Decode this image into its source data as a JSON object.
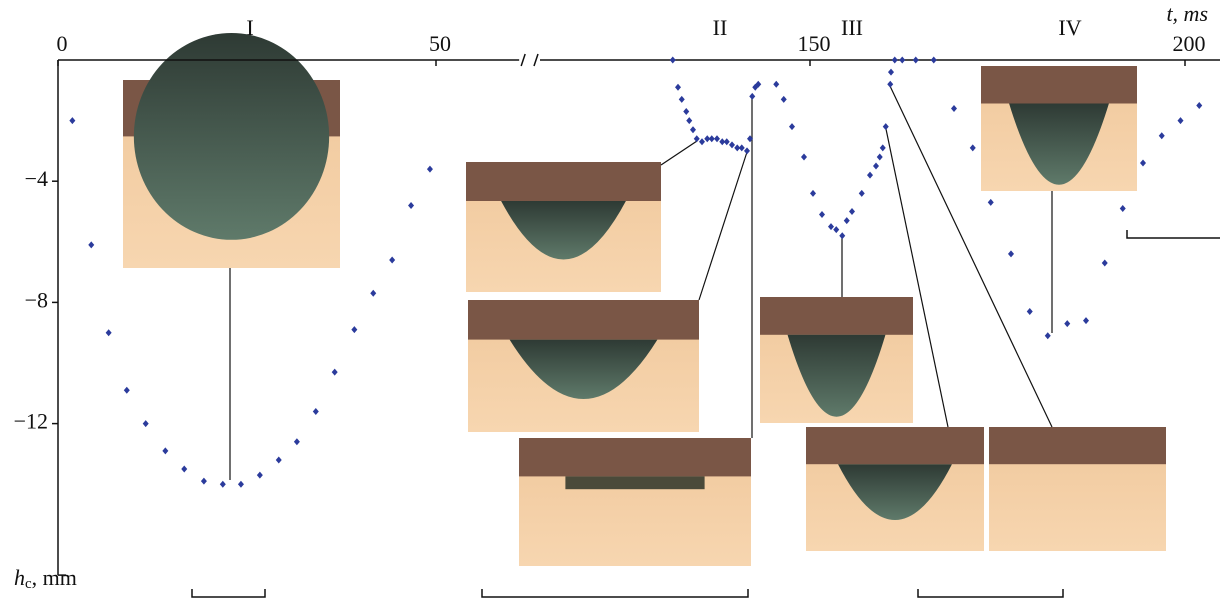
{
  "chart_data": {
    "type": "scatter",
    "x_label": "t, ms",
    "y_label": {
      "symbol": "h",
      "subscript": "c",
      "unit": ", mm"
    },
    "section_labels": [
      "I",
      "II",
      "III",
      "IV"
    ],
    "color": "#2b3b9c",
    "xlim": [
      0,
      211
    ],
    "x_break": [
      61,
      114
    ],
    "ylim": [
      -17,
      0
    ],
    "xticks": [
      0,
      50,
      150,
      200
    ],
    "yticks": [
      {
        "value": -4,
        "label": "−4"
      },
      {
        "value": -8,
        "label": "−8"
      },
      {
        "value": -12,
        "label": "−12"
      }
    ],
    "x": [
      1.9,
      4.4,
      6.7,
      9.1,
      11.6,
      14.2,
      16.7,
      19.3,
      21.8,
      24.2,
      26.7,
      29.2,
      31.6,
      34.1,
      36.6,
      39.2,
      41.7,
      44.2,
      46.7,
      49.2,
      131.7,
      132.4,
      132.9,
      133.5,
      133.9,
      134.4,
      134.9,
      135.6,
      136.3,
      136.9,
      137.6,
      138.3,
      138.9,
      139.6,
      140.3,
      140.9,
      141.6,
      142.0,
      142.3,
      142.7,
      143.1,
      145.5,
      146.5,
      147.6,
      149.2,
      150.4,
      151.6,
      152.8,
      153.5,
      154.3,
      154.9,
      155.6,
      156.9,
      158.0,
      158.8,
      159.3,
      159.7,
      160.1,
      160.7,
      160.8,
      161.3,
      162.3,
      164.1,
      166.5,
      169.2,
      171.7,
      174.1,
      176.8,
      179.3,
      181.7,
      184.3,
      186.8,
      189.3,
      191.7,
      194.4,
      196.9,
      199.4,
      201.9
    ],
    "y": [
      -2.0,
      -6.1,
      -9.0,
      -10.9,
      -12.0,
      -12.9,
      -13.5,
      -13.9,
      -14.0,
      -14.0,
      -13.7,
      -13.2,
      -12.6,
      -11.6,
      -10.3,
      -8.9,
      -7.7,
      -6.6,
      -4.8,
      -3.6,
      0,
      -0.9,
      -1.3,
      -1.7,
      -2.0,
      -2.3,
      -2.6,
      -2.7,
      -2.6,
      -2.6,
      -2.6,
      -2.7,
      -2.7,
      -2.8,
      -2.9,
      -2.9,
      -3.0,
      -2.6,
      -1.2,
      -0.9,
      -0.8,
      -0.8,
      -1.3,
      -2.2,
      -3.2,
      -4.4,
      -5.1,
      -5.5,
      -5.6,
      -5.8,
      -5.3,
      -5.0,
      -4.4,
      -3.8,
      -3.5,
      -3.2,
      -2.9,
      -2.2,
      -0.8,
      -0.4,
      0,
      0,
      0,
      0,
      -1.6,
      -2.9,
      -4.7,
      -6.4,
      -8.3,
      -9.1,
      -8.7,
      -8.6,
      -6.7,
      -4.9,
      -3.4,
      -2.5,
      -2.0,
      -1.5
    ]
  }
}
